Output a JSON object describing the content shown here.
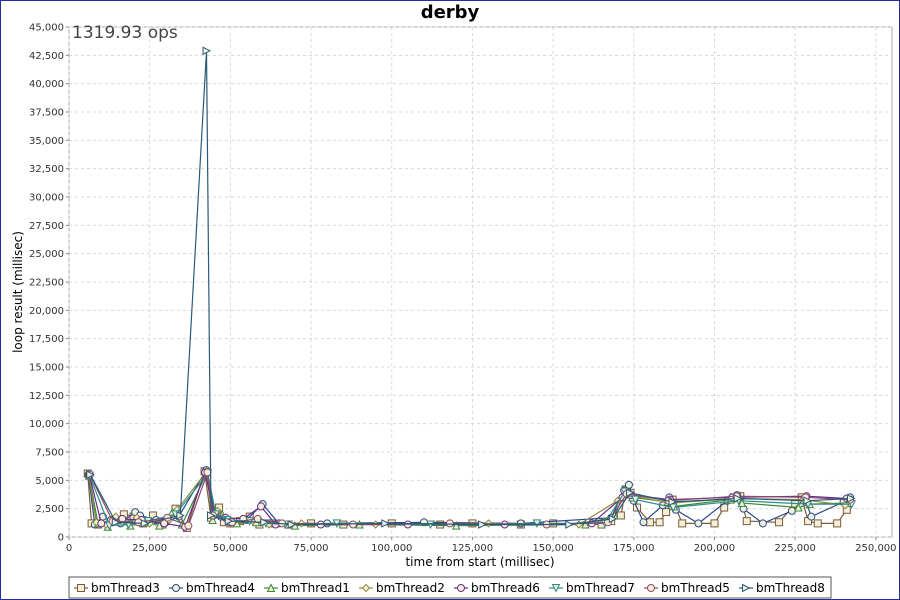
{
  "chart_data": {
    "type": "line",
    "title": "derby",
    "annotation": "1319.93 ops",
    "xlabel": "time from start (millisec)",
    "ylabel": "loop result (millisec)",
    "xlim": [
      0,
      255000
    ],
    "ylim": [
      0,
      45000
    ],
    "x_ticks": [
      "0",
      "25,000",
      "50,000",
      "75,000",
      "100,000",
      "125,000",
      "150,000",
      "175,000",
      "200,000",
      "225,000",
      "250,000"
    ],
    "x_tick_values": [
      0,
      25000,
      50000,
      75000,
      100000,
      125000,
      150000,
      175000,
      200000,
      225000,
      250000
    ],
    "y_ticks": [
      "0",
      "2,500",
      "5,000",
      "7,500",
      "10,000",
      "12,500",
      "15,000",
      "17,500",
      "20,000",
      "22,500",
      "25,000",
      "27,500",
      "30,000",
      "32,500",
      "35,000",
      "37,500",
      "40,000",
      "42,500",
      "45,000"
    ],
    "y_tick_values": [
      0,
      2500,
      5000,
      7500,
      10000,
      12500,
      15000,
      17500,
      20000,
      22500,
      25000,
      27500,
      30000,
      32500,
      35000,
      37500,
      40000,
      42500,
      45000
    ],
    "grid": true,
    "legend_position": "bottom",
    "series": [
      {
        "name": "bmThread3",
        "color": "#7a5c3a",
        "marker": "square",
        "x": [
          5800,
          7000,
          9000,
          11000,
          14000,
          17000,
          20000,
          23000,
          26000,
          29000,
          33000,
          36500,
          42000,
          44000,
          46500,
          48000,
          50000,
          53000,
          56000,
          59000,
          63000,
          68000,
          75000,
          85000,
          100000,
          115000,
          125000,
          140000,
          150000,
          165000,
          168000,
          171000,
          172500,
          174000,
          176000,
          180000,
          183000,
          185000,
          187000,
          190000,
          200000,
          203000,
          206000,
          208000,
          210000,
          220000,
          225000,
          227000,
          229000,
          232000,
          238000,
          241000
        ],
        "y": [
          5600,
          1200,
          1100,
          1300,
          1500,
          2000,
          1800,
          1200,
          1900,
          1100,
          2500,
          800,
          5800,
          1700,
          2600,
          1300,
          1200,
          1400,
          1800,
          1100,
          1200,
          1100,
          1200,
          1100,
          1200,
          1100,
          1200,
          1100,
          1200,
          1100,
          1400,
          1900,
          4200,
          3900,
          2600,
          1300,
          1300,
          2200,
          3300,
          1200,
          1200,
          2600,
          3500,
          3600,
          1400,
          1300,
          2900,
          3500,
          1400,
          1200,
          1200,
          2400
        ]
      },
      {
        "name": "bmThread4",
        "color": "#2a4a8a",
        "marker": "circle",
        "x": [
          6000,
          8000,
          10500,
          13000,
          16000,
          20500,
          22000,
          27000,
          30000,
          34000,
          42500,
          45000,
          47000,
          50000,
          55000,
          60000,
          65000,
          80000,
          110000,
          140000,
          168000,
          172000,
          173500,
          175000,
          178000,
          184000,
          186000,
          188000,
          195000,
          204000,
          207000,
          209000,
          215000,
          224000,
          228000,
          230000,
          240000,
          242000
        ],
        "y": [
          5500,
          1100,
          1800,
          1500,
          1200,
          2200,
          1900,
          1500,
          1300,
          1800,
          5900,
          2200,
          1800,
          1300,
          1500,
          2900,
          1200,
          1200,
          1300,
          1200,
          1700,
          4100,
          4600,
          3200,
          1300,
          2800,
          3500,
          2400,
          1200,
          3200,
          3700,
          2500,
          1200,
          2300,
          3400,
          1800,
          3100,
          3500
        ]
      },
      {
        "name": "bmThread1",
        "color": "#3a8a3a",
        "marker": "triangle",
        "x": [
          6200,
          9000,
          12000,
          15000,
          19000,
          24000,
          28000,
          32000,
          35000,
          42800,
          44500,
          47500,
          52000,
          58000,
          70000,
          90000,
          120000,
          160000,
          169000,
          172500,
          174500,
          185500,
          187500,
          205000,
          208500,
          226000,
          229500,
          241500
        ],
        "y": [
          5400,
          1200,
          900,
          1500,
          1000,
          1300,
          1000,
          2200,
          1100,
          5700,
          1500,
          2000,
          1200,
          1300,
          1000,
          1100,
          1000,
          1100,
          1900,
          4000,
          3500,
          3100,
          2700,
          3300,
          3000,
          2600,
          2900,
          3000
        ]
      },
      {
        "name": "bmThread2",
        "color": "#8a8a3a",
        "marker": "diamond",
        "x": [
          6100,
          8500,
          11500,
          14500,
          18000,
          21000,
          25000,
          31000,
          33500,
          42700,
          44200,
          46000,
          51000,
          57000,
          62000,
          72000,
          95000,
          130000,
          158000,
          170000,
          173000,
          186500,
          206500,
          227500,
          240500
        ],
        "y": [
          5500,
          1300,
          1100,
          1800,
          1300,
          1700,
          1200,
          1500,
          2400,
          5800,
          1800,
          2300,
          1300,
          1400,
          1100,
          1200,
          1100,
          1200,
          1100,
          3200,
          3700,
          3000,
          3400,
          3300,
          2800
        ]
      },
      {
        "name": "bmThread6",
        "color": "#6a2a8a",
        "marker": "circle",
        "x": [
          6300,
          10000,
          16500,
          22500,
          29500,
          36000,
          42200,
          44800,
          48500,
          54000,
          59500,
          64000,
          78000,
          105000,
          135000,
          162000,
          171500,
          174200,
          186200,
          205500,
          228500,
          241000
        ],
        "y": [
          5500,
          1200,
          1600,
          1500,
          1200,
          900,
          5700,
          2100,
          1700,
          1600,
          2700,
          1100,
          1100,
          1100,
          1100,
          1200,
          3500,
          3700,
          3300,
          3500,
          3600,
          3400
        ]
      },
      {
        "name": "bmThread7",
        "color": "#2a8a8a",
        "marker": "triangle-down",
        "x": [
          6400,
          12500,
          18500,
          24500,
          33000,
          43000,
          45500,
          49000,
          56000,
          61000,
          67000,
          83000,
          112000,
          145000,
          166000,
          172200,
          175500,
          187200,
          207500,
          229000,
          242500
        ],
        "y": [
          5400,
          1000,
          1100,
          1400,
          2000,
          5600,
          2000,
          1500,
          1400,
          1200,
          1100,
          1200,
          1100,
          1200,
          1200,
          4000,
          3300,
          2600,
          3200,
          2900,
          2900
        ]
      },
      {
        "name": "bmThread5",
        "color": "#8a4a6a",
        "marker": "circle",
        "x": [
          6500,
          13500,
          21500,
          30500,
          37000,
          42900,
          44600,
          50500,
          58500,
          66000,
          88000,
          118000,
          148000,
          167000,
          172800,
          185800,
          206800,
          228200,
          242000
        ],
        "y": [
          5500,
          1400,
          1300,
          1700,
          1000,
          5700,
          1900,
          1300,
          1600,
          1200,
          1100,
          1200,
          1100,
          1300,
          3800,
          3200,
          3600,
          3500,
          3300
        ]
      },
      {
        "name": "bmThread8",
        "color": "#2a5a7a",
        "marker": "triangle-right",
        "x": [
          6600,
          14500,
          23500,
          34500,
          42600,
          44000,
          49500,
          60500,
          69000,
          98000,
          128000,
          155000,
          168500,
          173800,
          187000,
          207200,
          228800,
          242300
        ],
        "y": [
          5500,
          1300,
          1200,
          1900,
          42900,
          1900,
          1400,
          1300,
          1100,
          1200,
          1100,
          1100,
          1600,
          3900,
          3100,
          3400,
          3200,
          3400
        ]
      }
    ]
  }
}
